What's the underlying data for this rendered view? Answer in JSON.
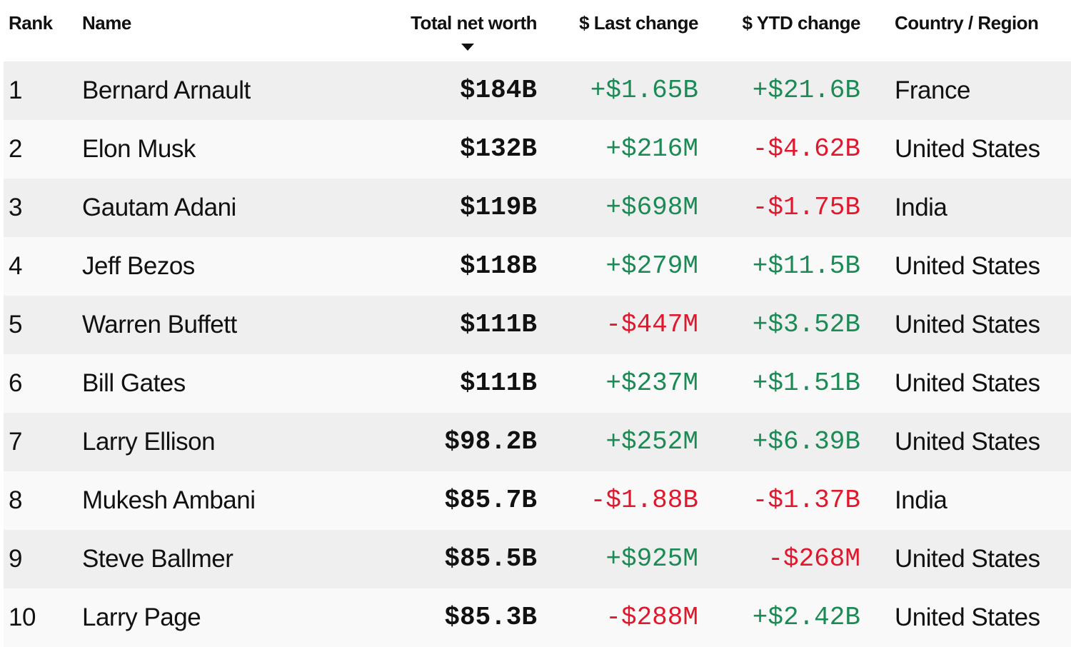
{
  "table": {
    "columns": [
      "Rank",
      "Name",
      "Total net worth",
      "$ Last change",
      "$ YTD change",
      "Country / Region"
    ],
    "rows": [
      [
        "1",
        "Bernard Arnault",
        "$184B",
        "+$1.65B",
        "+$21.6B",
        "France"
      ],
      [
        "2",
        "Elon Musk",
        "$132B",
        "+$216M",
        "-$4.62B",
        "United States"
      ],
      [
        "3",
        "Gautam Adani",
        "$119B",
        "+$698M",
        "-$1.75B",
        "India"
      ],
      [
        "4",
        "Jeff Bezos",
        "$118B",
        "+$279M",
        "+$11.5B",
        "United States"
      ],
      [
        "5",
        "Warren Buffett",
        "$111B",
        "-$447M",
        "+$3.52B",
        "United States"
      ],
      [
        "6",
        "Bill Gates",
        "$111B",
        "+$237M",
        "+$1.51B",
        "United States"
      ],
      [
        "7",
        "Larry Ellison",
        "$98.2B",
        "+$252M",
        "+$6.39B",
        "United States"
      ],
      [
        "8",
        "Mukesh Ambani",
        "$85.7B",
        "-$1.88B",
        "-$1.37B",
        "India"
      ],
      [
        "9",
        "Steve Ballmer",
        "$85.5B",
        "+$925M",
        "-$268M",
        "United States"
      ],
      [
        "10",
        "Larry Page",
        "$85.3B",
        "-$288M",
        "+$2.42B",
        "United States"
      ]
    ]
  },
  "colors": {
    "positive": "#1b8a55",
    "negative": "#e0182d",
    "text": "#111111",
    "row_odd": "#efefef",
    "row_even": "#f9f9f9"
  }
}
